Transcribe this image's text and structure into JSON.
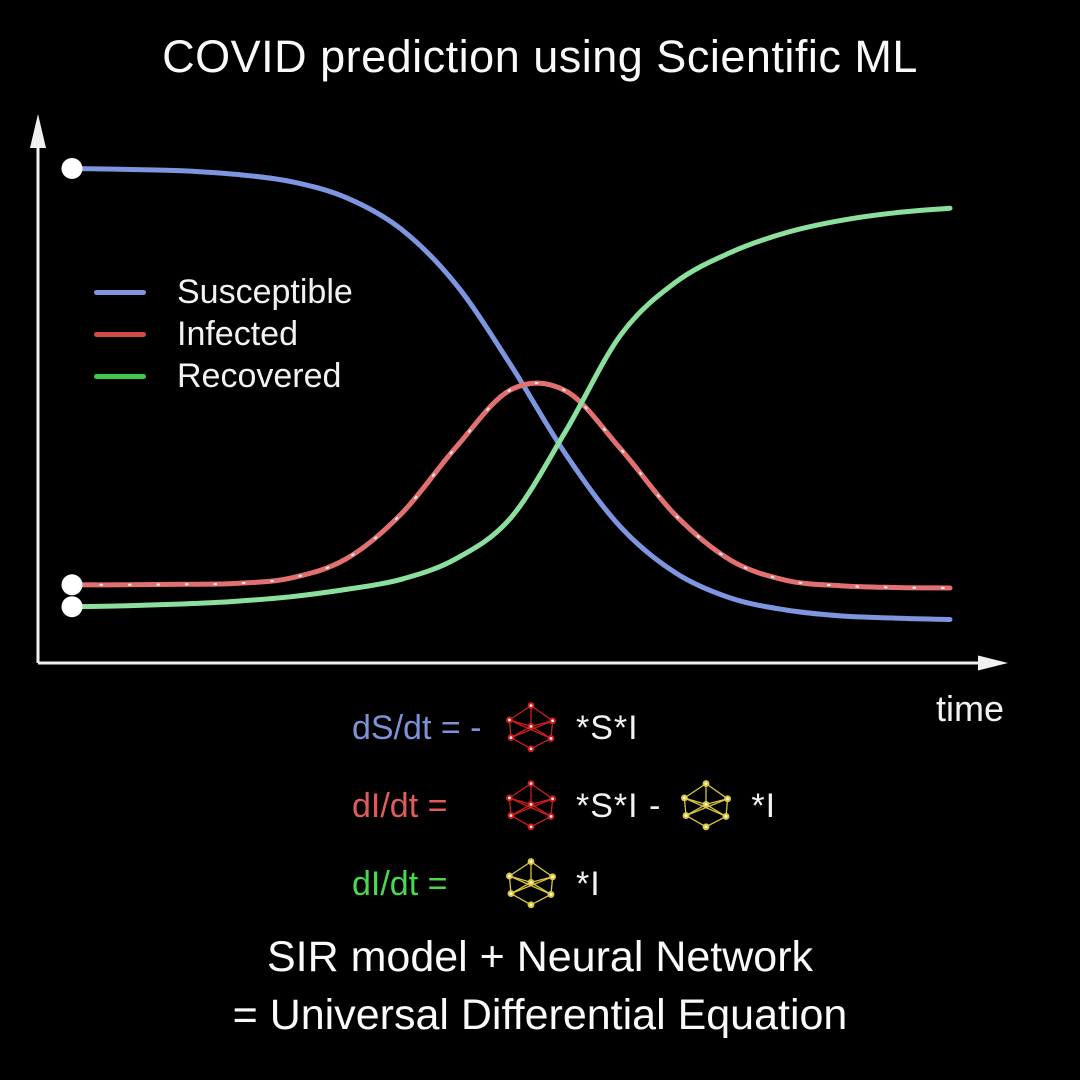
{
  "title": "COVID prediction using Scientific ML",
  "chart_data": {
    "type": "line",
    "title": "SIR epidemic curves",
    "xlabel": "time",
    "ylabel": "",
    "grid": false,
    "legend_position": "upper-left-inside",
    "axis_color": "#f0f0f0",
    "x_axis": {
      "label": "time",
      "ticks": [],
      "range_normalized": [
        0,
        1
      ]
    },
    "y_axis": {
      "label": "",
      "ticks": [],
      "range_normalized": [
        0,
        1.05
      ]
    },
    "x_normalized": [
      0,
      0.0625,
      0.125,
      0.1875,
      0.25,
      0.3125,
      0.375,
      0.4375,
      0.5,
      0.5625,
      0.625,
      0.6875,
      0.75,
      0.8125,
      0.875,
      0.9375,
      1
    ],
    "series": [
      {
        "name": "Susceptible",
        "color": "#7e95e0",
        "start_marker": "white-dot",
        "values": [
          0.999,
          0.997,
          0.994,
          0.986,
          0.97,
          0.935,
          0.866,
          0.745,
          0.568,
          0.373,
          0.214,
          0.114,
          0.059,
          0.033,
          0.02,
          0.015,
          0.012
        ]
      },
      {
        "name": "Infected",
        "color": "#e27070",
        "start_marker": "white-dot",
        "marker_overlay": "sparse-white-dots",
        "values": [
          0.088,
          0.088,
          0.089,
          0.091,
          0.103,
          0.145,
          0.243,
          0.389,
          0.515,
          0.512,
          0.385,
          0.24,
          0.142,
          0.098,
          0.086,
          0.082,
          0.081
        ]
      },
      {
        "name": "Recovered",
        "color": "#8be09d",
        "start_marker": "white-dot",
        "values": [
          0.04,
          0.042,
          0.046,
          0.052,
          0.062,
          0.078,
          0.1,
          0.145,
          0.235,
          0.425,
          0.635,
          0.75,
          0.815,
          0.858,
          0.885,
          0.902,
          0.912
        ]
      }
    ],
    "legend": [
      {
        "label": "Susceptible",
        "swatch_color": "#7e95e0"
      },
      {
        "label": "Infected",
        "swatch_color": "#cf4a42"
      },
      {
        "label": "Recovered",
        "swatch_color": "#3ec94a"
      }
    ]
  },
  "equations": [
    {
      "lhs": "dS/dt = -",
      "lhs_color": "#7e92d8",
      "terms": [
        {
          "icon": "nn-red"
        },
        {
          "text": "*S*I"
        }
      ]
    },
    {
      "lhs": "dI/dt =",
      "lhs_color": "#e05c5c",
      "terms": [
        {
          "icon": "nn-red"
        },
        {
          "text": "*S*I -"
        },
        {
          "icon": "nn-yellow"
        },
        {
          "text": "*I"
        }
      ]
    },
    {
      "lhs": "dI/dt =",
      "lhs_color": "#47da50",
      "terms": [
        {
          "icon": "nn-yellow"
        },
        {
          "text": "*I"
        }
      ]
    }
  ],
  "nn_icon_colors": {
    "nn-red": "#cf1d1d",
    "nn-yellow": "#dcc83e"
  },
  "footer_lines": [
    "SIR model + Neural Network",
    "= Universal Differential Equation"
  ]
}
